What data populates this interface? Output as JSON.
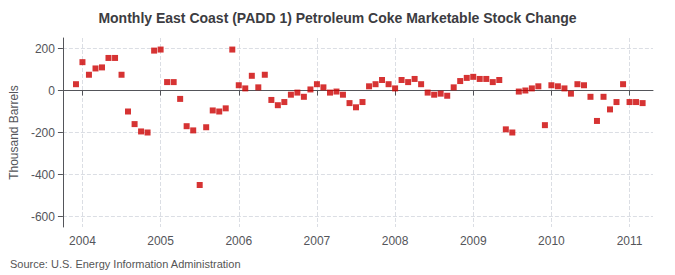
{
  "chart_data": {
    "type": "scatter",
    "title": "Monthly East Coast (PADD 1) Petroleum Coke Marketable Stock Change",
    "ylabel": "Thousand Barrels",
    "annotation": "Source: U.S. Energy Information Administration",
    "color": "#cc0000",
    "marker": "square",
    "grid": true,
    "xlim": [
      2003.75,
      2011.3
    ],
    "xticks": [
      2004,
      2005,
      2006,
      2007,
      2008,
      2009,
      2010,
      2011
    ],
    "ylim": [
      -650,
      250
    ],
    "yticks": [
      -600,
      -400,
      -200,
      0,
      200
    ],
    "x": [
      2003.917,
      2004.0,
      2004.083,
      2004.167,
      2004.25,
      2004.333,
      2004.417,
      2004.5,
      2004.583,
      2004.667,
      2004.75,
      2004.833,
      2004.917,
      2005.0,
      2005.083,
      2005.167,
      2005.25,
      2005.333,
      2005.417,
      2005.5,
      2005.583,
      2005.667,
      2005.75,
      2005.833,
      2005.917,
      2006.0,
      2006.083,
      2006.167,
      2006.25,
      2006.333,
      2006.417,
      2006.5,
      2006.583,
      2006.667,
      2006.75,
      2006.833,
      2006.917,
      2007.0,
      2007.083,
      2007.167,
      2007.25,
      2007.333,
      2007.417,
      2007.5,
      2007.583,
      2007.667,
      2007.75,
      2007.833,
      2007.917,
      2008.0,
      2008.083,
      2008.167,
      2008.25,
      2008.333,
      2008.417,
      2008.5,
      2008.583,
      2008.667,
      2008.75,
      2008.833,
      2008.917,
      2009.0,
      2009.083,
      2009.167,
      2009.25,
      2009.333,
      2009.417,
      2009.5,
      2009.583,
      2009.667,
      2009.75,
      2009.833,
      2009.917,
      2010.0,
      2010.083,
      2010.167,
      2010.25,
      2010.333,
      2010.417,
      2010.5,
      2010.583,
      2010.667,
      2010.75,
      2010.833,
      2010.917,
      2011.0,
      2011.083,
      2011.167
    ],
    "values": [
      30,
      135,
      75,
      105,
      110,
      155,
      155,
      75,
      -100,
      -160,
      -195,
      -200,
      190,
      195,
      40,
      40,
      -40,
      -170,
      -190,
      -450,
      -175,
      -95,
      -100,
      -85,
      195,
      25,
      10,
      70,
      15,
      75,
      -45,
      -70,
      -55,
      -20,
      -10,
      -30,
      5,
      30,
      15,
      -10,
      -5,
      -20,
      -60,
      -80,
      -55,
      20,
      30,
      50,
      30,
      10,
      50,
      40,
      55,
      30,
      -10,
      -20,
      -15,
      -25,
      15,
      45,
      60,
      65,
      55,
      55,
      40,
      50,
      -185,
      -200,
      -5,
      0,
      10,
      20,
      -165,
      25,
      20,
      10,
      -15,
      30,
      25,
      -30,
      -145,
      -30,
      -90,
      -55,
      30,
      -55,
      -55,
      -60
    ]
  }
}
